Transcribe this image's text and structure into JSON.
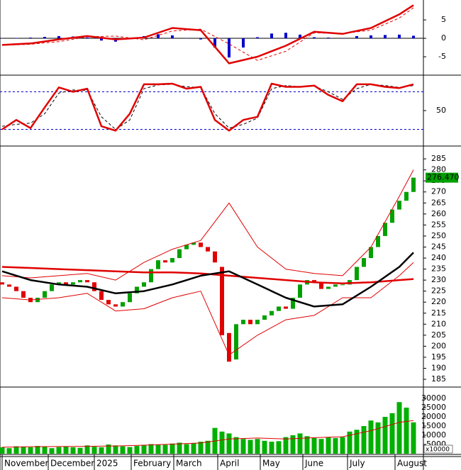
{
  "chart_data": [
    {
      "type": "line",
      "xlim": [
        -0.3,
        59.4
      ],
      "ylim": [
        -9.8,
        10.4
      ],
      "yticks": [
        -5,
        0,
        5
      ],
      "hlines": [
        0
      ],
      "hline_color": "#000000",
      "hline_dash": false,
      "series": [
        {
          "type": "bar",
          "color": "#0000cc",
          "line_width": 4,
          "x": [
            0,
            2,
            4,
            6,
            8,
            10,
            12,
            14,
            16,
            18,
            20,
            22,
            24,
            26,
            28,
            30,
            32,
            34,
            36,
            38,
            40,
            42,
            44,
            46,
            48,
            50,
            52,
            54,
            56,
            58
          ],
          "values": [
            0.1,
            0.1,
            0.2,
            0.4,
            0.6,
            0.5,
            0.2,
            -0.6,
            -0.9,
            -0.2,
            0.6,
            1.1,
            0.8,
            0.1,
            -0.3,
            -2.5,
            -5.2,
            -2.5,
            0.3,
            1.3,
            1.5,
            1,
            0.3,
            0.2,
            -0.1,
            0.6,
            0.8,
            0.9,
            1,
            0.7
          ]
        },
        {
          "type": "line",
          "color": "#e00000",
          "line_width": 1,
          "dash": true,
          "x": [
            0,
            4,
            8,
            12,
            16,
            20,
            24,
            28,
            32,
            36,
            40,
            44,
            48,
            52,
            56,
            58
          ],
          "values": [
            -1.9,
            -1.6,
            -0.9,
            0.4,
            0.6,
            -0.4,
            2,
            2.5,
            -1.5,
            -6,
            -3.5,
            1.5,
            1.3,
            2.2,
            5.5,
            8.3
          ]
        },
        {
          "type": "line",
          "color": "#e00000",
          "line_width": 2.5,
          "dash": false,
          "x": [
            0,
            4,
            8,
            12,
            16,
            20,
            24,
            28,
            32,
            36,
            40,
            44,
            48,
            52,
            56,
            58
          ],
          "values": [
            -1.8,
            -1.4,
            -0.3,
            0.6,
            -0.3,
            0.2,
            2.8,
            2.2,
            -6.8,
            -5,
            -2,
            1.8,
            1.2,
            2.8,
            6.5,
            9
          ]
        }
      ]
    },
    {
      "type": "line",
      "xlim": [
        -0.3,
        59.4
      ],
      "ylim": [
        -5.5,
        105.5
      ],
      "yticks": [
        50
      ],
      "hlines": [
        80,
        20
      ],
      "hline_color": "#0000cc",
      "hline_dash": true,
      "series": [
        {
          "type": "line",
          "color": "#000000",
          "line_width": 1,
          "dash": true,
          "x": [
            0,
            2,
            4,
            6,
            8,
            10,
            12,
            14,
            16,
            18,
            20,
            22,
            24,
            26,
            28,
            30,
            32,
            34,
            36,
            38,
            40,
            42,
            44,
            46,
            48,
            50,
            52,
            54,
            56,
            58
          ],
          "values": [
            25,
            28,
            30,
            45,
            78,
            83,
            82,
            40,
            20,
            35,
            85,
            91,
            92,
            88,
            87,
            45,
            22,
            28,
            38,
            85,
            90,
            88,
            89,
            80,
            68,
            85,
            92,
            90,
            87,
            90
          ]
        },
        {
          "type": "line",
          "color": "#e00000",
          "line_width": 2.5,
          "dash": false,
          "x": [
            0,
            2,
            4,
            6,
            8,
            10,
            12,
            14,
            16,
            18,
            20,
            22,
            24,
            26,
            28,
            30,
            32,
            34,
            36,
            38,
            40,
            42,
            44,
            46,
            48,
            50,
            52,
            54,
            56,
            58
          ],
          "values": [
            20,
            35,
            22,
            55,
            87,
            80,
            85,
            25,
            18,
            45,
            92,
            92,
            93,
            85,
            88,
            35,
            18,
            35,
            40,
            93,
            88,
            88,
            90,
            75,
            65,
            92,
            92,
            88,
            86,
            92
          ]
        }
      ]
    },
    {
      "type": "candlestick",
      "xlim": [
        -0.3,
        59.4
      ],
      "ylim": [
        181.8,
        290.5
      ],
      "yticks": [
        185,
        190,
        195,
        200,
        205,
        210,
        215,
        220,
        225,
        230,
        235,
        240,
        245,
        250,
        255,
        260,
        265,
        270,
        275,
        280,
        285
      ],
      "up_color": "#00a000",
      "down_color": "#e00000",
      "x": [
        0,
        1,
        2,
        3,
        4,
        5,
        6,
        7,
        8,
        9,
        10,
        11,
        12,
        13,
        14,
        15,
        16,
        17,
        18,
        19,
        20,
        21,
        22,
        23,
        24,
        25,
        26,
        27,
        28,
        29,
        30,
        31,
        32,
        33,
        34,
        35,
        36,
        37,
        38,
        39,
        40,
        41,
        42,
        43,
        44,
        45,
        46,
        47,
        48,
        49,
        50,
        51,
        52,
        53,
        54,
        55,
        56,
        57,
        58
      ],
      "open": [
        229,
        228,
        227,
        225,
        222,
        220,
        222,
        225,
        228,
        229,
        228,
        229,
        230,
        229,
        225,
        221,
        219,
        218,
        220,
        224,
        227,
        229,
        235,
        239,
        238,
        240,
        244,
        246,
        247,
        245,
        243,
        236,
        206,
        194,
        210,
        212,
        210,
        212,
        214,
        216,
        218,
        217,
        222,
        228,
        230,
        229,
        226,
        227,
        228,
        228,
        230,
        236,
        240,
        245,
        250,
        256,
        262,
        266,
        270
      ],
      "close": [
        228,
        227,
        225,
        222,
        220,
        222,
        225,
        228,
        229,
        228,
        229,
        230,
        229,
        225,
        221,
        219,
        218,
        220,
        224,
        227,
        229,
        235,
        239,
        238,
        240,
        244,
        246,
        247,
        245,
        243,
        238,
        205,
        193,
        210,
        212,
        210,
        212,
        214,
        216,
        218,
        217,
        222,
        228,
        230,
        229,
        226,
        227,
        228,
        228,
        230,
        236,
        240,
        245,
        250,
        256,
        262,
        266,
        270,
        276.47
      ],
      "last_price": {
        "value": 276.47,
        "label": "276.470"
      },
      "series": [
        {
          "type": "line",
          "color": "#e00000",
          "line_width": 1,
          "dash": false,
          "x": [
            0,
            4,
            8,
            12,
            16,
            20,
            24,
            28,
            32,
            36,
            40,
            44,
            48,
            52,
            56,
            58
          ],
          "values": [
            232,
            231,
            232,
            233,
            230,
            238,
            244,
            248,
            265,
            245,
            235,
            233,
            232,
            245,
            268,
            280
          ]
        },
        {
          "type": "line",
          "color": "#e00000",
          "line_width": 1,
          "dash": false,
          "x": [
            0,
            4,
            8,
            12,
            16,
            20,
            24,
            28,
            32,
            36,
            40,
            44,
            48,
            52,
            56,
            58
          ],
          "values": [
            222,
            221,
            222,
            224,
            216,
            217,
            222,
            225,
            196,
            205,
            212,
            214,
            222,
            222,
            232,
            238
          ]
        },
        {
          "type": "line",
          "color": "#e00000",
          "line_width": 2.5,
          "dash": false,
          "x": [
            0,
            4,
            8,
            12,
            16,
            20,
            24,
            28,
            32,
            36,
            40,
            44,
            48,
            52,
            56,
            58
          ],
          "values": [
            236,
            235.5,
            235,
            234.5,
            234,
            233.5,
            233.5,
            233,
            232,
            231,
            230,
            229,
            228.5,
            229,
            230,
            230.5
          ]
        },
        {
          "type": "line",
          "color": "#000000",
          "line_width": 2.5,
          "dash": false,
          "x": [
            0,
            4,
            8,
            12,
            16,
            20,
            24,
            28,
            32,
            36,
            40,
            44,
            48,
            52,
            56,
            58
          ],
          "values": [
            234,
            230,
            228,
            227,
            224,
            225,
            228,
            232,
            234,
            228,
            222,
            218,
            219,
            227,
            236,
            242.5
          ]
        }
      ]
    },
    {
      "type": "bar",
      "xlim": [
        -0.3,
        59.4
      ],
      "ylim": [
        0,
        35400
      ],
      "yticks": [
        5000,
        10000,
        15000,
        20000,
        25000,
        30000
      ],
      "unit_label": "x10000",
      "xticks": [
        {
          "value": 0,
          "label": "November"
        },
        {
          "value": 6.5,
          "label": "December"
        },
        {
          "value": 13,
          "label": "2025"
        },
        {
          "value": 18.2,
          "label": "February"
        },
        {
          "value": 24.2,
          "label": "March"
        },
        {
          "value": 30.4,
          "label": "April"
        },
        {
          "value": 36.4,
          "label": "May"
        },
        {
          "value": 42.4,
          "label": "June"
        },
        {
          "value": 48.7,
          "label": "July"
        },
        {
          "value": 55.4,
          "label": "August"
        }
      ],
      "series": [
        {
          "type": "bar",
          "color": "#00b000",
          "line_width": 7,
          "x": [
            0,
            1,
            2,
            3,
            4,
            5,
            6,
            7,
            8,
            9,
            10,
            11,
            12,
            13,
            14,
            15,
            16,
            17,
            18,
            19,
            20,
            21,
            22,
            23,
            24,
            25,
            26,
            27,
            28,
            29,
            30,
            31,
            32,
            33,
            34,
            35,
            36,
            37,
            38,
            39,
            40,
            41,
            42,
            43,
            44,
            45,
            46,
            47,
            48,
            49,
            50,
            51,
            52,
            53,
            54,
            55,
            56,
            57,
            58
          ],
          "values": [
            3500,
            3000,
            4000,
            3800,
            3500,
            4200,
            3800,
            3000,
            3600,
            4000,
            3500,
            3200,
            4500,
            3800,
            3500,
            5000,
            4500,
            4000,
            3600,
            4200,
            4800,
            5200,
            5000,
            4800,
            5500,
            6000,
            5200,
            5800,
            6500,
            7000,
            14000,
            12000,
            11000,
            9000,
            8000,
            7500,
            8000,
            7000,
            6500,
            6800,
            9000,
            10000,
            11000,
            9500,
            8500,
            8000,
            9000,
            8500,
            9000,
            12000,
            13000,
            15000,
            18000,
            17000,
            20000,
            22000,
            28000,
            25000,
            17000
          ]
        },
        {
          "type": "line",
          "color": "#e00000",
          "line_width": 1,
          "dash": false,
          "x": [
            0,
            4,
            8,
            12,
            16,
            20,
            24,
            28,
            32,
            36,
            40,
            44,
            48,
            52,
            56,
            58
          ],
          "values": [
            3500,
            3800,
            3900,
            4000,
            4200,
            4600,
            5200,
            5800,
            8000,
            8500,
            8000,
            8700,
            9200,
            12500,
            17000,
            18000
          ]
        }
      ]
    }
  ]
}
